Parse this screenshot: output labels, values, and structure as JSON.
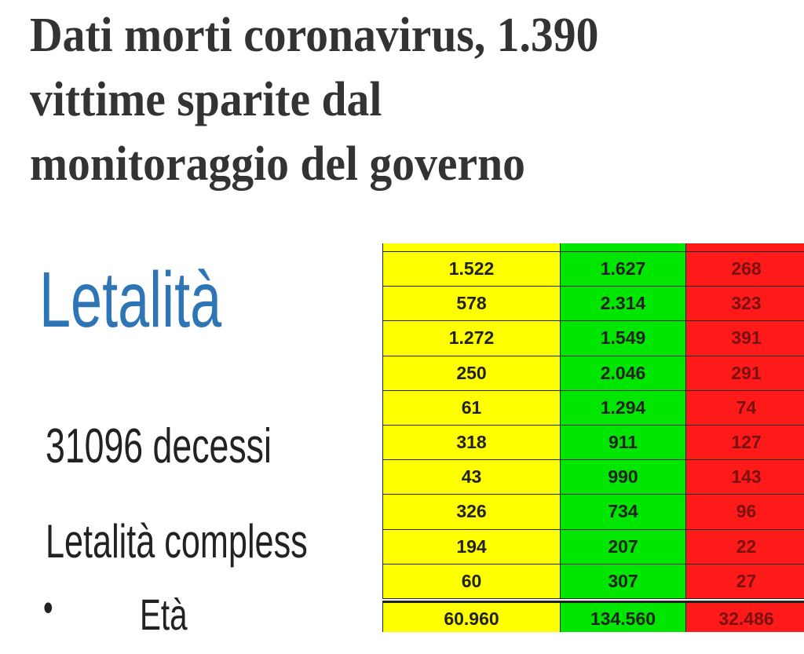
{
  "headline": [
    "Dati morti coronavirus, 1.390",
    "vittime sparite dal",
    "monitoraggio del governo"
  ],
  "slide": {
    "title": "Letalità",
    "deaths": "31096 decessi",
    "line": "Letalità compless",
    "bullet": "Età"
  },
  "table": {
    "rows": [
      [
        "1.522",
        "1.627",
        "268"
      ],
      [
        "578",
        "2.314",
        "323"
      ],
      [
        "1.272",
        "1.549",
        "391"
      ],
      [
        "250",
        "2.046",
        "291"
      ],
      [
        "61",
        "1.294",
        "74"
      ],
      [
        "318",
        "911",
        "127"
      ],
      [
        "43",
        "990",
        "143"
      ],
      [
        "326",
        "734",
        "96"
      ],
      [
        "194",
        "207",
        "22"
      ],
      [
        "60",
        "307",
        "27"
      ]
    ],
    "total": [
      "60.960",
      "134.560",
      "32.486"
    ]
  }
}
